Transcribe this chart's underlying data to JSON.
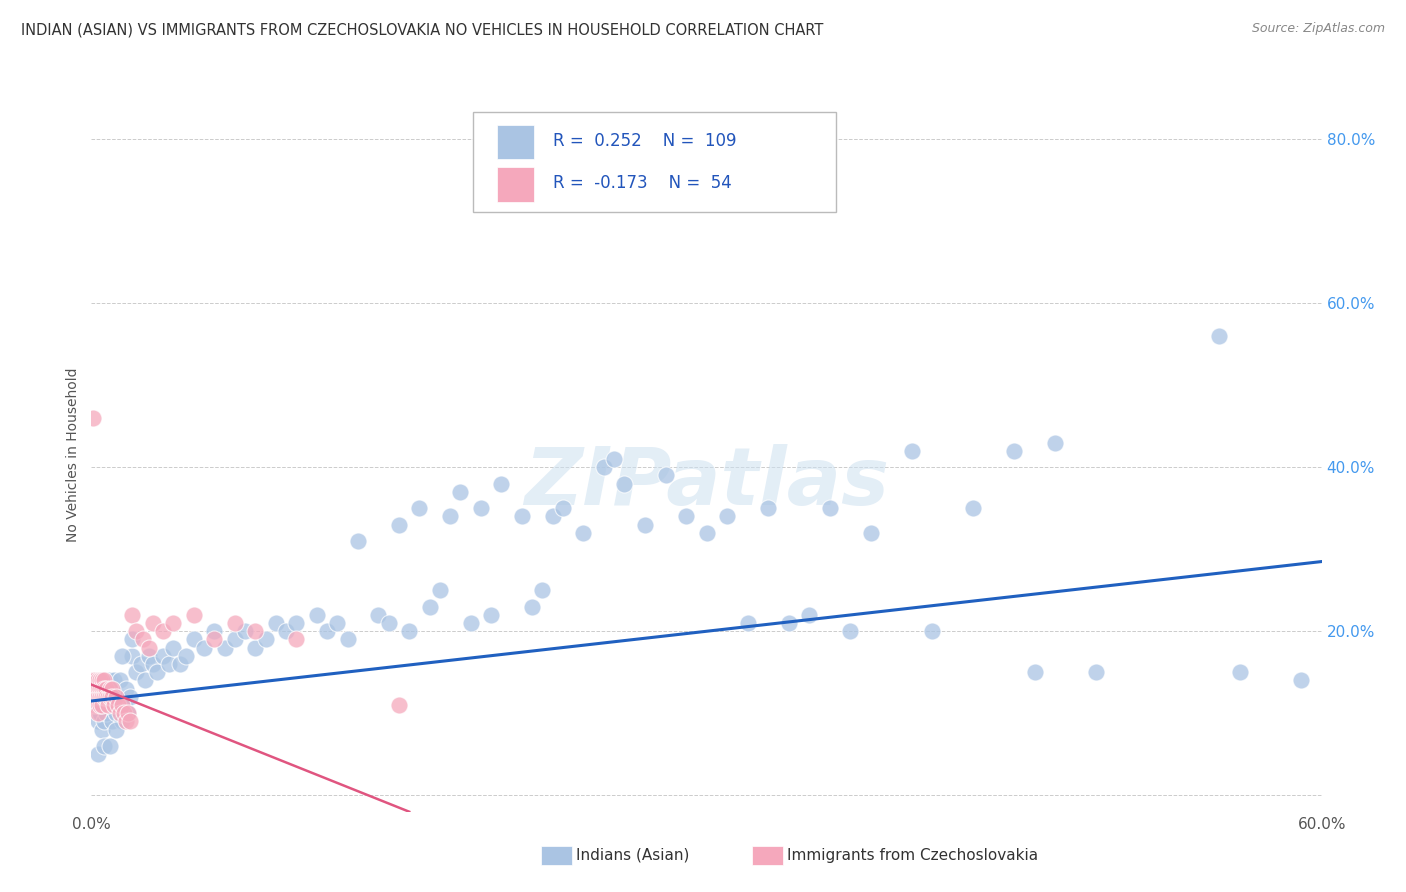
{
  "title": "INDIAN (ASIAN) VS IMMIGRANTS FROM CZECHOSLOVAKIA NO VEHICLES IN HOUSEHOLD CORRELATION CHART",
  "source": "Source: ZipAtlas.com",
  "ylabel": "No Vehicles in Household",
  "xlim": [
    0.0,
    0.6
  ],
  "ylim": [
    -0.02,
    0.85
  ],
  "yticks": [
    0.0,
    0.2,
    0.4,
    0.6,
    0.8
  ],
  "ytick_labels_right": [
    "",
    "20.0%",
    "40.0%",
    "60.0%",
    "80.0%"
  ],
  "r_blue": 0.252,
  "n_blue": 109,
  "r_pink": -0.173,
  "n_pink": 54,
  "blue_color": "#aac4e3",
  "pink_color": "#f5a8bc",
  "line_blue": "#2060c0",
  "line_pink": "#e05580",
  "watermark": "ZIPatlas",
  "background_color": "#ffffff",
  "grid_color": "#cccccc",
  "legend_blue_label": "Indians (Asian)",
  "legend_pink_label": "Immigrants from Czechoslovakia",
  "blue_line_x0": 0.0,
  "blue_line_y0": 0.115,
  "blue_line_x1": 0.6,
  "blue_line_y1": 0.285,
  "pink_line_x0": 0.0,
  "pink_line_y0": 0.135,
  "pink_line_x1": 0.155,
  "pink_line_y1": -0.02,
  "blue_x": [
    0.001,
    0.002,
    0.002,
    0.003,
    0.003,
    0.003,
    0.004,
    0.004,
    0.005,
    0.005,
    0.006,
    0.006,
    0.007,
    0.007,
    0.008,
    0.008,
    0.009,
    0.009,
    0.01,
    0.01,
    0.011,
    0.011,
    0.012,
    0.013,
    0.014,
    0.015,
    0.016,
    0.017,
    0.018,
    0.019,
    0.02,
    0.022,
    0.024,
    0.026,
    0.028,
    0.03,
    0.032,
    0.035,
    0.038,
    0.04,
    0.043,
    0.046,
    0.05,
    0.055,
    0.06,
    0.065,
    0.07,
    0.075,
    0.08,
    0.085,
    0.09,
    0.095,
    0.1,
    0.11,
    0.115,
    0.12,
    0.125,
    0.13,
    0.14,
    0.145,
    0.15,
    0.155,
    0.16,
    0.165,
    0.17,
    0.175,
    0.18,
    0.185,
    0.19,
    0.195,
    0.2,
    0.21,
    0.215,
    0.22,
    0.225,
    0.23,
    0.24,
    0.25,
    0.255,
    0.26,
    0.27,
    0.28,
    0.29,
    0.3,
    0.31,
    0.32,
    0.33,
    0.34,
    0.35,
    0.36,
    0.37,
    0.38,
    0.4,
    0.41,
    0.43,
    0.45,
    0.46,
    0.47,
    0.49,
    0.55,
    0.56,
    0.59,
    0.003,
    0.006,
    0.009,
    0.012,
    0.015,
    0.02
  ],
  "blue_y": [
    0.13,
    0.115,
    0.13,
    0.09,
    0.11,
    0.14,
    0.1,
    0.13,
    0.08,
    0.14,
    0.09,
    0.13,
    0.1,
    0.14,
    0.11,
    0.13,
    0.12,
    0.14,
    0.09,
    0.13,
    0.11,
    0.14,
    0.1,
    0.12,
    0.14,
    0.09,
    0.11,
    0.13,
    0.1,
    0.12,
    0.17,
    0.15,
    0.16,
    0.14,
    0.17,
    0.16,
    0.15,
    0.17,
    0.16,
    0.18,
    0.16,
    0.17,
    0.19,
    0.18,
    0.2,
    0.18,
    0.19,
    0.2,
    0.18,
    0.19,
    0.21,
    0.2,
    0.21,
    0.22,
    0.2,
    0.21,
    0.19,
    0.31,
    0.22,
    0.21,
    0.33,
    0.2,
    0.35,
    0.23,
    0.25,
    0.34,
    0.37,
    0.21,
    0.35,
    0.22,
    0.38,
    0.34,
    0.23,
    0.25,
    0.34,
    0.35,
    0.32,
    0.4,
    0.41,
    0.38,
    0.33,
    0.39,
    0.34,
    0.32,
    0.34,
    0.21,
    0.35,
    0.21,
    0.22,
    0.35,
    0.2,
    0.32,
    0.42,
    0.2,
    0.35,
    0.42,
    0.15,
    0.43,
    0.15,
    0.56,
    0.15,
    0.14,
    0.05,
    0.06,
    0.06,
    0.08,
    0.17,
    0.19
  ],
  "pink_x": [
    0.001,
    0.001,
    0.001,
    0.002,
    0.002,
    0.002,
    0.002,
    0.003,
    0.003,
    0.003,
    0.003,
    0.003,
    0.004,
    0.004,
    0.004,
    0.004,
    0.005,
    0.005,
    0.005,
    0.005,
    0.006,
    0.006,
    0.006,
    0.007,
    0.007,
    0.008,
    0.008,
    0.009,
    0.009,
    0.01,
    0.01,
    0.011,
    0.012,
    0.013,
    0.014,
    0.015,
    0.016,
    0.017,
    0.018,
    0.019,
    0.02,
    0.022,
    0.025,
    0.028,
    0.03,
    0.035,
    0.04,
    0.05,
    0.06,
    0.07,
    0.08,
    0.1,
    0.15,
    0.001
  ],
  "pink_y": [
    0.14,
    0.13,
    0.12,
    0.14,
    0.13,
    0.12,
    0.11,
    0.14,
    0.13,
    0.12,
    0.11,
    0.1,
    0.14,
    0.13,
    0.12,
    0.11,
    0.14,
    0.13,
    0.12,
    0.11,
    0.14,
    0.13,
    0.12,
    0.13,
    0.12,
    0.12,
    0.11,
    0.13,
    0.12,
    0.13,
    0.12,
    0.11,
    0.12,
    0.11,
    0.1,
    0.11,
    0.1,
    0.09,
    0.1,
    0.09,
    0.22,
    0.2,
    0.19,
    0.18,
    0.21,
    0.2,
    0.21,
    0.22,
    0.19,
    0.21,
    0.2,
    0.19,
    0.11,
    0.46
  ]
}
